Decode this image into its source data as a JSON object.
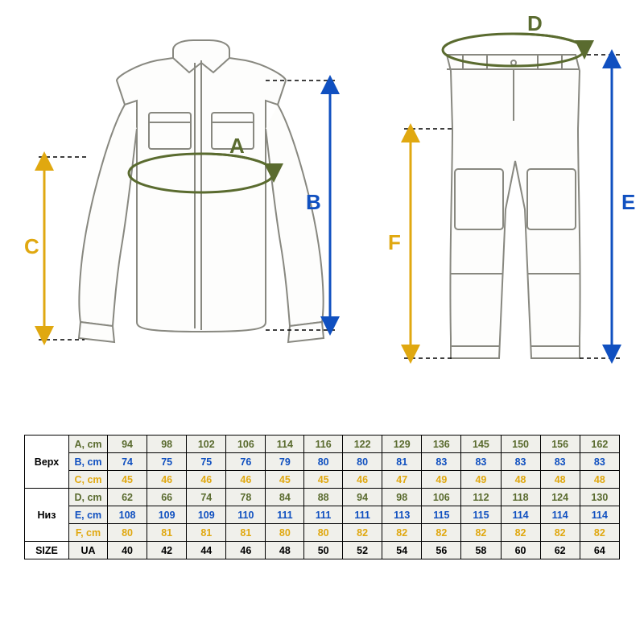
{
  "labels": {
    "A": {
      "text": "A",
      "color": "#5a6b2f"
    },
    "B": {
      "text": "B",
      "color": "#1050c0"
    },
    "C": {
      "text": "C",
      "color": "#e0a810"
    },
    "D": {
      "text": "D",
      "color": "#5a6b2f"
    },
    "E": {
      "text": "E",
      "color": "#1050c0"
    },
    "F": {
      "text": "F",
      "color": "#e0a810"
    }
  },
  "colors": {
    "olive": "#5a6b2f",
    "blue": "#1050c0",
    "gold": "#e0a810",
    "outline": "#808078",
    "fill": "#fefefe",
    "cell_bg": "#f0f0eb"
  },
  "table": {
    "group_top": "Верх",
    "group_bottom": "Низ",
    "size_label": "SIZE",
    "size_unit": "UA",
    "rows": [
      {
        "label": "A, cm",
        "color_class": "olive",
        "values": [
          94,
          98,
          102,
          106,
          114,
          116,
          122,
          129,
          136,
          145,
          150,
          156,
          162
        ]
      },
      {
        "label": "B, cm",
        "color_class": "blue",
        "values": [
          74,
          75,
          75,
          76,
          79,
          80,
          80,
          81,
          83,
          83,
          83,
          83,
          83
        ]
      },
      {
        "label": "C, cm",
        "color_class": "gold",
        "values": [
          45,
          46,
          46,
          46,
          45,
          45,
          46,
          47,
          49,
          49,
          48,
          48,
          48
        ]
      },
      {
        "label": "D, cm",
        "color_class": "olive",
        "values": [
          62,
          66,
          74,
          78,
          84,
          88,
          94,
          98,
          106,
          112,
          118,
          124,
          130
        ]
      },
      {
        "label": "E, cm",
        "color_class": "blue",
        "values": [
          108,
          109,
          109,
          110,
          111,
          111,
          111,
          113,
          115,
          115,
          114,
          114,
          114
        ]
      },
      {
        "label": "F, cm",
        "color_class": "gold",
        "values": [
          80,
          81,
          81,
          81,
          80,
          80,
          82,
          82,
          82,
          82,
          82,
          82,
          82
        ]
      }
    ],
    "sizes": [
      40,
      42,
      44,
      46,
      48,
      50,
      52,
      54,
      56,
      58,
      60,
      62,
      64
    ]
  },
  "diagram": {
    "label_font_size": 26,
    "label_font_weight": "bold",
    "arrow_stroke_width": 3,
    "dash_pattern": "5,4",
    "garment_stroke": "#888880",
    "garment_stroke_width": 2
  }
}
